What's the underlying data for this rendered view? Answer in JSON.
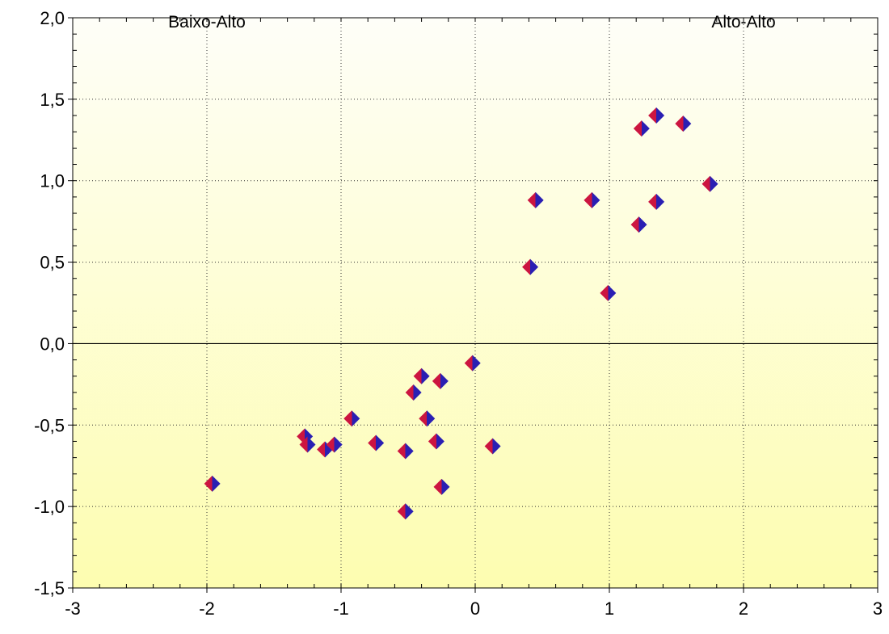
{
  "chart_data": {
    "type": "scatter",
    "title": "",
    "xlabel": "",
    "ylabel": "",
    "xlim": [
      -3,
      3
    ],
    "ylim": [
      -1.5,
      2.0
    ],
    "x_ticks": [
      {
        "value": -3,
        "label": "-3"
      },
      {
        "value": -2,
        "label": "-2"
      },
      {
        "value": -1,
        "label": "-1"
      },
      {
        "value": 0,
        "label": "0"
      },
      {
        "value": 1,
        "label": "1"
      },
      {
        "value": 2,
        "label": "2"
      },
      {
        "value": 3,
        "label": "3"
      }
    ],
    "y_ticks": [
      {
        "value": 2.0,
        "label": "2,0"
      },
      {
        "value": 1.5,
        "label": "1,5"
      },
      {
        "value": 1.0,
        "label": "1,0"
      },
      {
        "value": 0.5,
        "label": "0,5"
      },
      {
        "value": 0.0,
        "label": "0,0"
      },
      {
        "value": -0.5,
        "label": "-0,5"
      },
      {
        "value": -1.0,
        "label": "-1,0"
      },
      {
        "value": -1.5,
        "label": "-1,5"
      }
    ],
    "annotations": [
      {
        "text": "Baixo-Alto",
        "x": -2.0,
        "y": 2.0
      },
      {
        "text": "Alto-Alto",
        "x": 2.0,
        "y": 2.0
      }
    ],
    "grid": true,
    "series": [
      {
        "points": [
          {
            "x": -1.96,
            "y": -0.86
          },
          {
            "x": -1.27,
            "y": -0.57
          },
          {
            "x": -1.25,
            "y": -0.62
          },
          {
            "x": -1.12,
            "y": -0.65
          },
          {
            "x": -1.05,
            "y": -0.62
          },
          {
            "x": -0.92,
            "y": -0.46
          },
          {
            "x": -0.74,
            "y": -0.61
          },
          {
            "x": -0.52,
            "y": -0.66
          },
          {
            "x": -0.52,
            "y": -1.03
          },
          {
            "x": -0.46,
            "y": -0.3
          },
          {
            "x": -0.4,
            "y": -0.2
          },
          {
            "x": -0.36,
            "y": -0.46
          },
          {
            "x": -0.29,
            "y": -0.6
          },
          {
            "x": -0.26,
            "y": -0.23
          },
          {
            "x": -0.25,
            "y": -0.88
          },
          {
            "x": -0.02,
            "y": -0.12
          },
          {
            "x": 0.13,
            "y": -0.63
          },
          {
            "x": 0.41,
            "y": 0.47
          },
          {
            "x": 0.45,
            "y": 0.88
          },
          {
            "x": 0.87,
            "y": 0.88
          },
          {
            "x": 0.99,
            "y": 0.31
          },
          {
            "x": 1.22,
            "y": 0.73
          },
          {
            "x": 1.24,
            "y": 1.32
          },
          {
            "x": 1.35,
            "y": 0.87
          },
          {
            "x": 1.35,
            "y": 1.4
          },
          {
            "x": 1.55,
            "y": 1.35
          },
          {
            "x": 1.75,
            "y": 0.98
          }
        ],
        "marker": "diamond",
        "marker_colors": [
          "#cc1540",
          "#2a1fb3"
        ]
      }
    ],
    "background_gradient": [
      "#fefef8",
      "#fdfdb0"
    ],
    "zero_line": true
  }
}
